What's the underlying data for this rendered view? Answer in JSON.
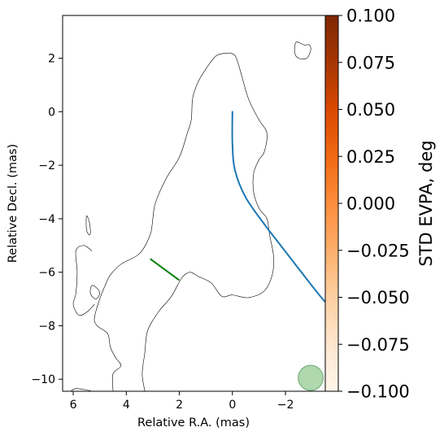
{
  "chart_data": {
    "type": "line",
    "xlabel": "Relative R.A. (mas)",
    "ylabel": "Relative Decl. (mas)",
    "xlim": [
      6.4,
      -3.5
    ],
    "ylim": [
      -10.45,
      3.6
    ],
    "x_ticks": [
      6,
      4,
      2,
      0,
      -2
    ],
    "x_tick_labels": [
      "6",
      "4",
      "2",
      "0",
      "−2"
    ],
    "y_ticks": [
      2,
      0,
      -2,
      -4,
      -6,
      -8,
      -10
    ],
    "y_tick_labels": [
      "2",
      "0",
      "−2",
      "−4",
      "−6",
      "−8",
      "−10"
    ],
    "grid": false,
    "series": [
      {
        "color": "#1f77b4",
        "points": [
          [
            0,
            0
          ],
          [
            0,
            -1.2
          ],
          [
            -0.1,
            -2.2
          ],
          [
            -0.5,
            -3.2
          ],
          [
            -1.2,
            -4.2
          ],
          [
            -1.9,
            -5.1
          ],
          [
            -2.6,
            -6.0
          ],
          [
            -3.4,
            -7.0
          ],
          [
            -4.0,
            -7.6
          ],
          [
            -4.5,
            -8.3
          ]
        ]
      }
    ],
    "segment": {
      "color": "#008000",
      "points": [
        [
          3.1,
          -5.5
        ],
        [
          2.0,
          -6.3
        ]
      ]
    },
    "contours": [
      {
        "color": "#000000",
        "points": [
          [
            0.1,
            2.2
          ],
          [
            -0.1,
            2.1
          ],
          [
            -0.25,
            1.7
          ],
          [
            -0.6,
            0.5
          ],
          [
            -1.0,
            -0.3
          ],
          [
            -1.3,
            -0.8
          ],
          [
            -1.2,
            -1.5
          ],
          [
            -1.0,
            -1.8
          ],
          [
            -0.8,
            -2.3
          ],
          [
            -0.8,
            -3.0
          ],
          [
            -1.0,
            -3.6
          ],
          [
            -1.3,
            -4.0
          ],
          [
            -1.4,
            -4.6
          ],
          [
            -1.55,
            -5.4
          ],
          [
            -1.5,
            -6.1
          ],
          [
            -1.2,
            -6.7
          ],
          [
            -0.6,
            -6.95
          ],
          [
            0.0,
            -6.85
          ],
          [
            0.4,
            -6.9
          ],
          [
            0.8,
            -6.4
          ],
          [
            1.3,
            -6.15
          ],
          [
            1.6,
            -6.0
          ],
          [
            1.9,
            -6.2
          ],
          [
            2.3,
            -6.9
          ],
          [
            2.8,
            -7.5
          ],
          [
            3.2,
            -8.2
          ],
          [
            3.3,
            -9.0
          ],
          [
            3.4,
            -9.8
          ],
          [
            3.3,
            -10.45
          ]
        ]
      },
      {
        "color": "#000000",
        "points": [
          [
            0.1,
            2.2
          ],
          [
            0.6,
            2.1
          ],
          [
            1.0,
            1.6
          ],
          [
            1.3,
            1.1
          ],
          [
            1.5,
            0.5
          ],
          [
            1.55,
            -0.3
          ],
          [
            1.7,
            -0.8
          ],
          [
            2.0,
            -1.7
          ],
          [
            2.5,
            -2.5
          ],
          [
            2.9,
            -3.4
          ],
          [
            3.0,
            -4.0
          ],
          [
            3.1,
            -4.6
          ],
          [
            3.5,
            -5.3
          ],
          [
            4.2,
            -5.7
          ],
          [
            4.6,
            -6.1
          ],
          [
            4.8,
            -6.5
          ],
          [
            5.0,
            -7.0
          ],
          [
            5.2,
            -7.7
          ],
          [
            5.1,
            -8.0
          ],
          [
            4.7,
            -8.3
          ],
          [
            4.6,
            -8.8
          ],
          [
            4.4,
            -9.2
          ],
          [
            4.2,
            -9.5
          ],
          [
            4.5,
            -9.8
          ],
          [
            4.5,
            -10.45
          ]
        ]
      },
      {
        "color": "#000000",
        "points": [
          [
            5.3,
            -5.2
          ],
          [
            5.6,
            -5.0
          ],
          [
            5.9,
            -5.2
          ],
          [
            5.85,
            -6.0
          ],
          [
            5.9,
            -6.8
          ],
          [
            6.0,
            -7.2
          ],
          [
            5.8,
            -7.6
          ],
          [
            5.5,
            -7.5
          ],
          [
            5.2,
            -7.2
          ]
        ]
      },
      {
        "color": "#000000",
        "closed": true,
        "points": [
          [
            -2.4,
            2.6
          ],
          [
            -2.7,
            2.5
          ],
          [
            -2.9,
            2.5
          ],
          [
            -2.95,
            2.3
          ],
          [
            -2.8,
            2.0
          ],
          [
            -2.5,
            2.0
          ],
          [
            -2.35,
            2.2
          ]
        ]
      },
      {
        "color": "#000000",
        "closed": true,
        "points": [
          [
            5.5,
            -3.9
          ],
          [
            5.4,
            -4.1
          ],
          [
            5.35,
            -4.5
          ],
          [
            5.4,
            -4.6
          ],
          [
            5.5,
            -4.4
          ]
        ]
      },
      {
        "color": "#000000",
        "closed": true,
        "points": [
          [
            5.3,
            -6.5
          ],
          [
            5.1,
            -6.6
          ],
          [
            5.0,
            -6.8
          ],
          [
            5.15,
            -7.0
          ],
          [
            5.35,
            -6.8
          ]
        ]
      },
      {
        "color": "#000000",
        "points": [
          [
            6.1,
            -10.45
          ],
          [
            5.9,
            -10.35
          ],
          [
            5.5,
            -10.4
          ],
          [
            5.3,
            -10.45
          ]
        ]
      }
    ],
    "beam": {
      "x": -2.95,
      "y": -9.95,
      "radius_x": 0.47,
      "radius_y": 0.47,
      "color": "#90c98f",
      "edge_color": "#6aa86a"
    },
    "colorbar": {
      "label": "STD EVPA, deg",
      "min": -0.1,
      "max": 0.1,
      "ticks": [
        0.1,
        0.075,
        0.05,
        0.025,
        0.0,
        -0.025,
        -0.05,
        -0.075,
        -0.1
      ],
      "tick_labels": [
        "0.100",
        "0.075",
        "0.050",
        "0.025",
        "0.000",
        "−0.025",
        "−0.050",
        "−0.075",
        "−0.100"
      ],
      "colormap": "Oranges",
      "stops": [
        "#fff5eb",
        "#fee6ce",
        "#fdd0a2",
        "#fdae6b",
        "#fd8d3c",
        "#f16913",
        "#d94801",
        "#a63603",
        "#7f2704"
      ]
    }
  }
}
